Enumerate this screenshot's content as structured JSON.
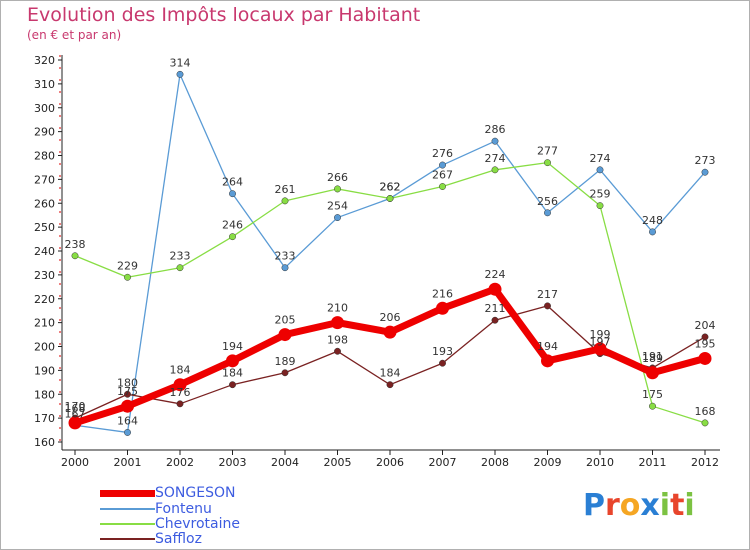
{
  "title": "Evolution des Impôts locaux par Habitant",
  "subtitle": "(en € et par an)",
  "brand": "Proxiti",
  "chart_data": {
    "type": "line",
    "title": "Evolution des Impôts locaux par Habitant",
    "subtitle": "(en € et par an)",
    "xlabel": "",
    "ylabel": "",
    "x": [
      "2000",
      "2001",
      "2002",
      "2003",
      "2004",
      "2005",
      "2006",
      "2007",
      "2008",
      "2009",
      "2010",
      "2011",
      "2012"
    ],
    "ylim": [
      160,
      320
    ],
    "yticks": [
      160,
      170,
      180,
      190,
      200,
      210,
      220,
      230,
      240,
      250,
      260,
      270,
      280,
      290,
      300,
      310,
      320
    ],
    "grid": false,
    "legend_position": "bottom-left",
    "series": [
      {
        "name": "SONGESON",
        "color": "#ee0000",
        "values": [
          168,
          175,
          184,
          194,
          205,
          210,
          206,
          216,
          224,
          194,
          199,
          189,
          195
        ]
      },
      {
        "name": "Fontenu",
        "color": "#5a9bd5",
        "values": [
          167,
          164,
          314,
          264,
          233,
          254,
          262,
          276,
          286,
          256,
          274,
          248,
          273
        ]
      },
      {
        "name": "Chevrotaine",
        "color": "#88dd44",
        "values": [
          238,
          229,
          233,
          246,
          261,
          266,
          262,
          267,
          274,
          277,
          259,
          175,
          168
        ]
      },
      {
        "name": "Saffloz",
        "color": "#7a2222",
        "values": [
          170,
          180,
          176,
          184,
          189,
          198,
          184,
          193,
          211,
          217,
          197,
          191,
          204
        ]
      }
    ]
  }
}
